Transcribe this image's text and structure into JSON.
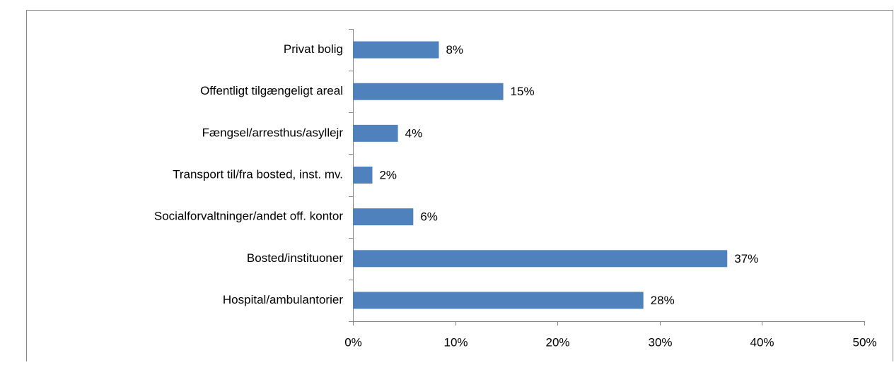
{
  "chart_data": {
    "type": "barh",
    "categories": [
      "Privat bolig",
      "Offentligt tilgængeligt areal",
      "Fængsel/arresthus/asyllejr",
      "Transport til/fra bosted, inst. mv.",
      "Socialforvaltninger/andet off. kontor",
      "Bosted/instituoner",
      "Hospital/ambulantorier"
    ],
    "values": [
      8.4,
      14.7,
      4.4,
      1.9,
      5.9,
      36.6,
      28.4
    ],
    "value_labels": [
      "8%",
      "15%",
      "4%",
      "2%",
      "6%",
      "37%",
      "28%"
    ],
    "color": "#4f81bd",
    "xlim": [
      0,
      50
    ],
    "xticks": [
      {
        "value": 0,
        "label": "0%"
      },
      {
        "value": 10,
        "label": "10%"
      },
      {
        "value": 20,
        "label": "20%"
      },
      {
        "value": 30,
        "label": "30%"
      },
      {
        "value": 40,
        "label": "40%"
      },
      {
        "value": 50,
        "label": "50%"
      }
    ],
    "grid": false
  }
}
